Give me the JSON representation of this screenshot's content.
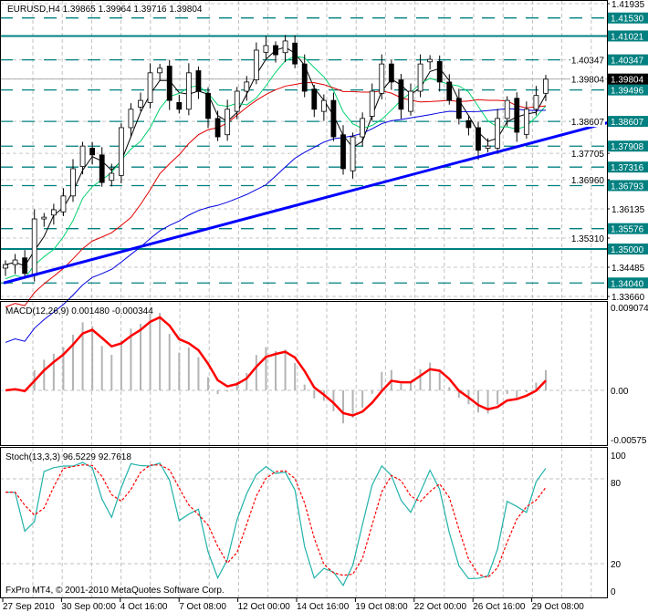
{
  "chart_data": {
    "type": "candlestick",
    "symbol_header": "EURUSD,H4  1.39865 1.39964 1.39716 1.39804",
    "symbol": "EURUSD",
    "timeframe": "H4",
    "ohlc_current": {
      "open": 1.39865,
      "high": 1.39964,
      "low": 1.39716,
      "close": 1.39804
    },
    "ylim": [
      1.3366,
      1.41935
    ],
    "closes": [
      1.3456,
      1.3469,
      1.3431,
      1.3585,
      1.359,
      1.3611,
      1.365,
      1.3727,
      1.3791,
      1.3766,
      1.3688,
      1.3714,
      1.3843,
      1.3895,
      1.392,
      1.3998,
      1.4011,
      1.392,
      1.3895,
      1.3998,
      1.3946,
      1.3869,
      1.3817,
      1.3895,
      1.3946,
      1.3972,
      1.4062,
      1.4075,
      1.4049,
      1.4088,
      1.4023,
      1.3946,
      1.3895,
      1.392,
      1.3817,
      1.3727,
      1.3817,
      1.3869,
      1.3946,
      1.4023,
      1.3972,
      1.3895,
      1.3946,
      1.4023,
      1.4036,
      1.3972,
      1.392,
      1.3869,
      1.3843,
      1.3779,
      1.3791,
      1.3869,
      1.392,
      1.383,
      1.3895,
      1.3934,
      1.398
    ],
    "price_ticks": [
      "1.41935",
      "1.40347",
      "1.39804",
      "1.38607",
      "1.37705",
      "1.36960",
      "1.36135",
      "1.35310",
      "1.34485",
      "1.33660"
    ],
    "levels": [
      {
        "value": 1.4153,
        "label": "1.41530",
        "style": "dashed"
      },
      {
        "value": 1.41021,
        "label": "1.41021",
        "style": "solid"
      },
      {
        "value": 1.40347,
        "label": "1.40347",
        "style": "dashed"
      },
      {
        "value": 1.39496,
        "label": "1.39496",
        "style": "dashed"
      },
      {
        "value": 1.38607,
        "label": "1.38607",
        "style": "dashed"
      },
      {
        "value": 1.37908,
        "label": "1.37908",
        "style": "dashed"
      },
      {
        "value": 1.37316,
        "label": "1.37316",
        "style": "dashed"
      },
      {
        "value": 1.36793,
        "label": "1.36793",
        "style": "dashed"
      },
      {
        "value": 1.35576,
        "label": "1.35576",
        "style": "dashed"
      },
      {
        "value": 1.35,
        "label": "1.35000",
        "style": "solid"
      },
      {
        "value": 1.3404,
        "label": "1.34040",
        "style": "dashed"
      }
    ],
    "bid": {
      "value": 1.39804,
      "label": "1.39804"
    },
    "trendline": {
      "from": 1.3404,
      "to": 1.386
    },
    "moving_averages": [
      {
        "color": "#000000"
      },
      {
        "color": "#00d26e"
      },
      {
        "color": "#e00000"
      },
      {
        "color": "#0000e0"
      }
    ],
    "macd": {
      "title": "MACD(12,26,9) 0.001480 -0.000344",
      "ticks": [
        "0.009074",
        "0.00",
        "-0.00575"
      ],
      "range": [
        -0.00575,
        0.009074
      ],
      "main": 0.00148,
      "signal": -0.000344
    },
    "stoch": {
      "title": "Stoch(13,3,3) 96.5229 92.7618",
      "ticks": [
        "100",
        "80",
        "20",
        "0"
      ],
      "main": 96.5229,
      "signal": 92.7618
    },
    "time_labels": [
      "27 Sep 2010",
      "30 Sep 00:00",
      "4 Oct 16:00",
      "7 Oct 08:00",
      "12 Oct 00:00",
      "14 Oct 16:00",
      "19 Oct 08:00",
      "22 Oct 00:00",
      "26 Oct 16:00",
      "29 Oct 08:00"
    ],
    "colors": {
      "level": "#008080",
      "trend": "#0000ff",
      "macd_signal": "#ff0000",
      "stoch_main": "#20b2aa",
      "stoch_signal": "#ff0000"
    }
  },
  "copyright": "FxPro MT4, © 2001-2010 MetaQuotes Software Corp."
}
